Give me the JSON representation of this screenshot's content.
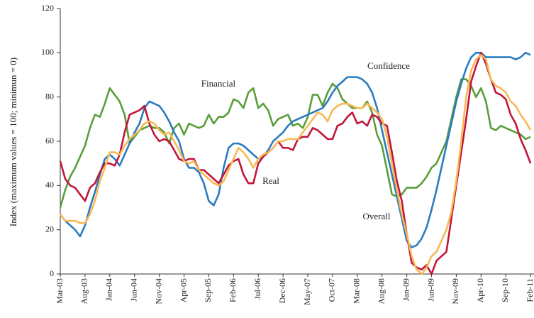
{
  "chart_data": {
    "type": "line",
    "y_label": "Index (maximum values = 100; minimun = 0)",
    "categories": [
      "Mar-03",
      null,
      null,
      null,
      null,
      "Aug-03",
      null,
      null,
      null,
      null,
      "Jan-04",
      null,
      null,
      null,
      null,
      "Jun-04",
      null,
      null,
      null,
      null,
      "Nov-04",
      null,
      null,
      null,
      null,
      "Apr-05",
      null,
      null,
      null,
      null,
      "Sep-05",
      null,
      null,
      null,
      null,
      "Feb-06",
      null,
      null,
      null,
      null,
      "Jul-06",
      null,
      null,
      null,
      null,
      "Dec-06",
      null,
      null,
      null,
      null,
      "May-07",
      null,
      null,
      null,
      null,
      "Oct-07",
      null,
      null,
      null,
      null,
      "Mar-08",
      null,
      null,
      null,
      null,
      "Aug-08",
      null,
      null,
      null,
      null,
      "Jan-09",
      null,
      null,
      null,
      null,
      "Jun-09",
      null,
      null,
      null,
      null,
      "Nov-09",
      null,
      null,
      null,
      null,
      "Apr-10",
      null,
      null,
      null,
      null,
      "Sep-10",
      null,
      null,
      null,
      null,
      "Feb-11"
    ],
    "series": [
      {
        "name": "Financial",
        "color": "#5a9e3a",
        "values": [
          30,
          38,
          44,
          48,
          53,
          58,
          66,
          72,
          71,
          77,
          84,
          81,
          78,
          72,
          59,
          62,
          65,
          66,
          67,
          66,
          66,
          64,
          59,
          66,
          68,
          63,
          68,
          67,
          66,
          67,
          72,
          68,
          71,
          71,
          73,
          79,
          78,
          75,
          82,
          84,
          75,
          77,
          74,
          67,
          70,
          71,
          72,
          67,
          68,
          66,
          71,
          81,
          81,
          76,
          82,
          86,
          84,
          79,
          77,
          75,
          75,
          75,
          78,
          73,
          63,
          58,
          47,
          36,
          35,
          36,
          39,
          39,
          39,
          41,
          44,
          48,
          50,
          55,
          60,
          70,
          80,
          88,
          88,
          85,
          80,
          84,
          78,
          66,
          65,
          67,
          66,
          65,
          64,
          63,
          61,
          62
        ]
      },
      {
        "name": "Confidence",
        "color": "#2a7cc0",
        "values": [
          27,
          24,
          22,
          20,
          17,
          22,
          30,
          37,
          45,
          52,
          54,
          52,
          49,
          54,
          59,
          64,
          68,
          75,
          78,
          77,
          76,
          73,
          69,
          64,
          60,
          52,
          48,
          48,
          46,
          41,
          33,
          31,
          36,
          48,
          57,
          59,
          59,
          58,
          56,
          54,
          52,
          53,
          56,
          60,
          62,
          64,
          67,
          69,
          70,
          71,
          72,
          73,
          74,
          75,
          78,
          82,
          85,
          87,
          89,
          89,
          89,
          88,
          86,
          82,
          75,
          65,
          55,
          45,
          35,
          25,
          15,
          12,
          13,
          16,
          21,
          29,
          38,
          48,
          58,
          68,
          78,
          86,
          93,
          98,
          100,
          100,
          98,
          98,
          98,
          98,
          98,
          98,
          97,
          98,
          100,
          99
        ]
      },
      {
        "name": "Real",
        "color": "#c0163a",
        "values": [
          51,
          43,
          40,
          39,
          36,
          33,
          39,
          41,
          46,
          50,
          50,
          49,
          54,
          64,
          72,
          73,
          74,
          76,
          68,
          63,
          60,
          61,
          60,
          56,
          52,
          51,
          52,
          52,
          47,
          47,
          45,
          43,
          41,
          45,
          49,
          51,
          52,
          45,
          41,
          41,
          50,
          53,
          55,
          57,
          60,
          57,
          57,
          56,
          61,
          62,
          62,
          66,
          65,
          63,
          61,
          61,
          67,
          68,
          71,
          73,
          68,
          69,
          67,
          72,
          71,
          68,
          67,
          55,
          42,
          33,
          18,
          5,
          3,
          2,
          4,
          0,
          6,
          8,
          10,
          25,
          40,
          55,
          70,
          87,
          94,
          100,
          95,
          88,
          82,
          81,
          79,
          72,
          68,
          61,
          56,
          50
        ]
      },
      {
        "name": "Overall",
        "color": "#f7b955",
        "values": [
          27,
          24,
          24,
          24,
          23,
          23,
          27,
          33,
          42,
          48,
          55,
          55,
          54,
          58,
          61,
          63,
          65,
          68,
          69,
          68,
          65,
          63,
          64,
          60,
          56,
          51,
          50,
          51,
          47,
          45,
          43,
          41,
          40,
          42,
          47,
          52,
          57,
          55,
          52,
          48,
          52,
          54,
          55,
          57,
          60,
          60,
          61,
          61,
          61,
          64,
          67,
          70,
          73,
          72,
          69,
          74,
          76,
          77,
          77,
          76,
          75,
          75,
          77,
          75,
          73,
          70,
          62,
          50,
          38,
          27,
          18,
          8,
          2,
          0,
          3,
          8,
          10,
          15,
          20,
          28,
          42,
          60,
          80,
          92,
          97,
          99,
          97,
          88,
          85,
          84,
          82,
          78,
          76,
          72,
          69,
          65
        ]
      }
    ],
    "ylim": [
      0,
      120
    ],
    "yticks": [
      0,
      20,
      40,
      60,
      80,
      100,
      120
    ],
    "grid": false
  }
}
